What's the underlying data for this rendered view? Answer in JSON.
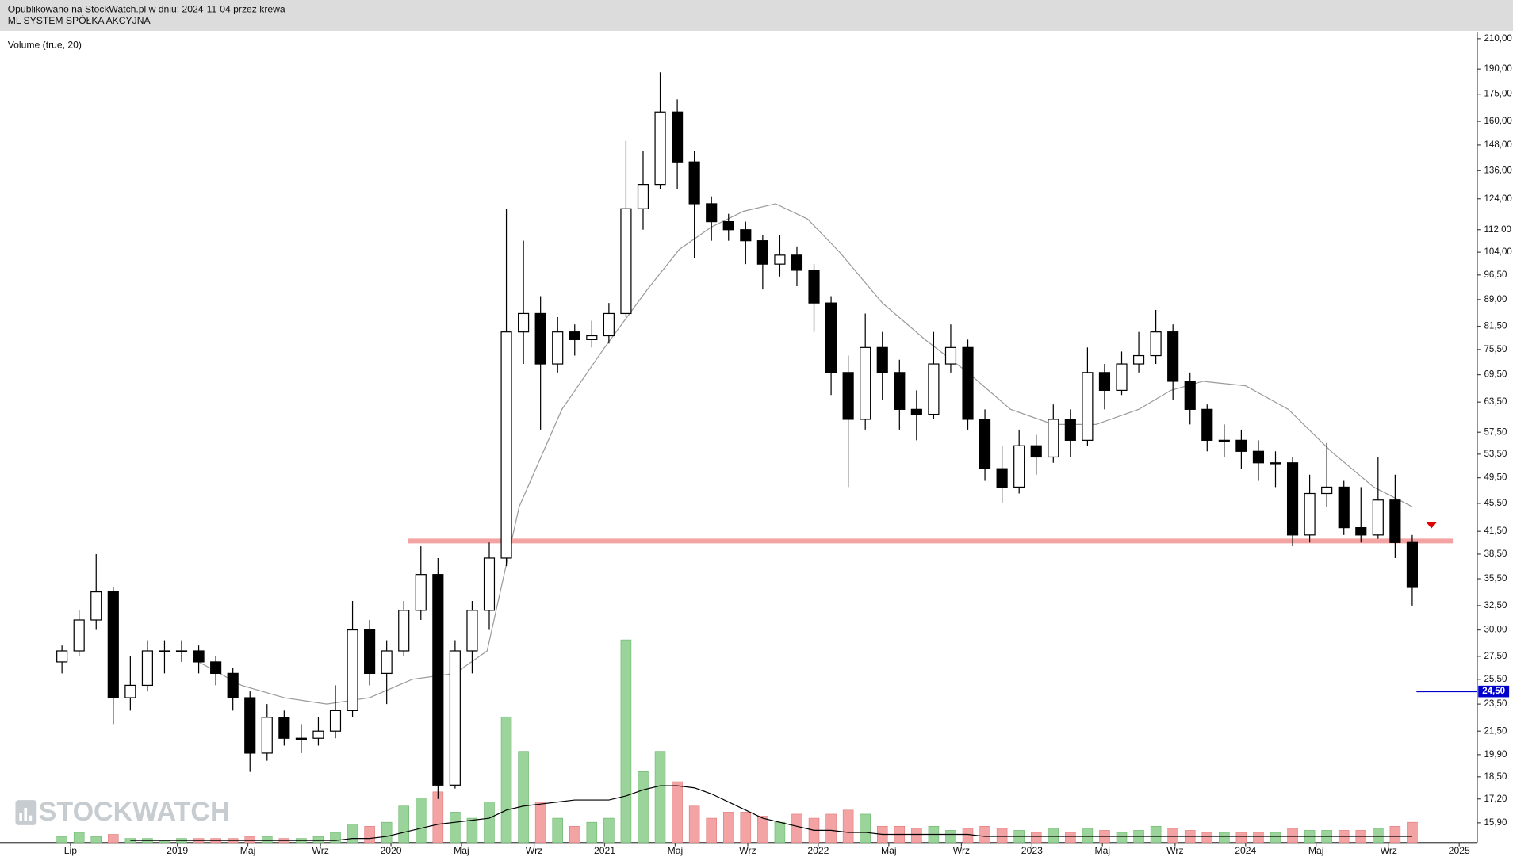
{
  "header": {
    "line1": "Opublikowano na StockWatch.pl w dniu: 2024-11-04 przez krewa",
    "line2": "ML SYSTEM SPÓŁKA AKCYJNA"
  },
  "watermark": "STOCKWATCH",
  "chart_data": {
    "type": "candlestick",
    "indicator_label": "Volume (true, 20)",
    "log_scale": true,
    "up_color": "#ffffff",
    "down_color": "#000000",
    "volume_up_color": "#9bd49b",
    "volume_down_color": "#f3a3a3",
    "volume_ma_color": "#000000",
    "x": [
      2018.46,
      2018.54,
      2018.62,
      2018.7,
      2018.78,
      2018.86,
      2018.94,
      2019.02,
      2019.1,
      2019.18,
      2019.26,
      2019.34,
      2019.42,
      2019.5,
      2019.58,
      2019.66,
      2019.74,
      2019.82,
      2019.9,
      2019.98,
      2020.06,
      2020.14,
      2020.22,
      2020.3,
      2020.38,
      2020.46,
      2020.54,
      2020.62,
      2020.7,
      2020.78,
      2020.86,
      2020.94,
      2021.02,
      2021.1,
      2021.18,
      2021.26,
      2021.34,
      2021.42,
      2021.5,
      2021.58,
      2021.66,
      2021.74,
      2021.82,
      2021.9,
      2021.98,
      2022.06,
      2022.14,
      2022.22,
      2022.3,
      2022.38,
      2022.46,
      2022.54,
      2022.62,
      2022.7,
      2022.78,
      2022.86,
      2022.94,
      2023.02,
      2023.1,
      2023.18,
      2023.26,
      2023.34,
      2023.42,
      2023.5,
      2023.58,
      2023.66,
      2023.74,
      2023.82,
      2023.9,
      2023.98,
      2024.06,
      2024.14,
      2024.22,
      2024.3,
      2024.38,
      2024.46,
      2024.54,
      2024.62,
      2024.7,
      2024.78
    ],
    "open": [
      27,
      28,
      31,
      34,
      24,
      25,
      28,
      28,
      28,
      27,
      26,
      24,
      20,
      22.5,
      21,
      21,
      21.5,
      23,
      30,
      26,
      28,
      32,
      36,
      18,
      28,
      32,
      38,
      80,
      85,
      72,
      80,
      78,
      79,
      85,
      120,
      130,
      165,
      140,
      122,
      115,
      112,
      108,
      100,
      103,
      98,
      88,
      70,
      60,
      76,
      70,
      62,
      61,
      72,
      76,
      60,
      51,
      48,
      55,
      53,
      60,
      56,
      70,
      66,
      72,
      74,
      80,
      68,
      62,
      56,
      56,
      54,
      52,
      52,
      41,
      47,
      48,
      42,
      41,
      46,
      40
    ],
    "high": [
      28.5,
      32,
      38.5,
      34.5,
      27.5,
      29,
      29,
      29,
      28.5,
      27.5,
      26.5,
      24.5,
      23.5,
      23,
      22,
      22.5,
      25,
      33,
      31,
      29,
      33,
      39.5,
      38,
      29,
      33,
      40,
      120,
      108,
      90,
      84,
      82,
      83,
      88,
      150,
      145,
      188,
      172,
      145,
      125,
      118,
      115,
      110,
      110,
      106,
      100,
      90,
      74,
      85,
      80,
      73,
      66,
      80,
      82,
      78,
      62,
      55,
      58,
      57,
      63,
      62,
      76,
      72,
      75,
      80,
      86,
      82,
      70,
      63,
      59,
      58,
      56,
      54,
      53,
      50,
      55.5,
      49,
      48,
      53,
      50,
      41
    ],
    "low": [
      26,
      27.5,
      30,
      22,
      23,
      24.5,
      26,
      27,
      26,
      25,
      23,
      18.8,
      19.5,
      20.5,
      20,
      20.5,
      21,
      22.5,
      25,
      23.5,
      27.5,
      31,
      17.2,
      17.8,
      26,
      30,
      37,
      72,
      58,
      70,
      74,
      76,
      77,
      84,
      112,
      128,
      128,
      102,
      108,
      108,
      100,
      92,
      96,
      93,
      80,
      65,
      48,
      58,
      64,
      58,
      56,
      60,
      70,
      58,
      49,
      45.5,
      47,
      50,
      52,
      53,
      55,
      62,
      65,
      70,
      72,
      64,
      59,
      54,
      53,
      51,
      49,
      48,
      39.5,
      40,
      45,
      41,
      40,
      40.5,
      38,
      32.5
    ],
    "close": [
      28,
      31,
      34,
      24,
      25,
      28,
      28,
      28,
      27,
      26,
      24,
      20,
      22.5,
      21,
      21,
      21.5,
      23,
      30,
      26,
      28,
      32,
      36,
      18,
      28,
      32,
      38,
      80,
      85,
      72,
      80,
      78,
      79,
      85,
      120,
      130,
      165,
      140,
      122,
      115,
      112,
      108,
      100,
      103,
      98,
      88,
      70,
      60,
      76,
      70,
      62,
      61,
      72,
      76,
      60,
      51,
      48,
      55,
      53,
      60,
      56,
      70,
      66,
      72,
      74,
      80,
      68,
      62,
      56,
      56,
      54,
      52,
      52,
      41,
      47,
      48,
      42,
      41,
      46,
      40,
      34.5
    ],
    "volume": [
      3,
      5,
      3,
      4,
      2,
      2,
      1,
      2,
      2,
      2,
      2,
      3,
      3,
      2,
      2,
      3,
      5,
      9,
      8,
      10,
      18,
      22,
      25,
      15,
      12,
      20,
      62,
      45,
      20,
      12,
      8,
      10,
      12,
      100,
      35,
      45,
      30,
      18,
      12,
      15,
      15,
      13,
      10,
      14,
      12,
      14,
      16,
      14,
      8,
      8,
      7,
      8,
      6,
      7,
      8,
      7,
      6,
      5,
      7,
      5,
      7,
      6,
      5,
      6,
      8,
      7,
      6,
      5,
      5,
      5,
      5,
      5,
      7,
      6,
      6,
      6,
      6,
      7,
      8,
      10
    ],
    "volume_ma": [
      null,
      null,
      null,
      null,
      1,
      1,
      1,
      1,
      1,
      1,
      1,
      1,
      1,
      1,
      1,
      1,
      1,
      2,
      2,
      3,
      5,
      7,
      9,
      10,
      11,
      12,
      16,
      18,
      19,
      20,
      21,
      21,
      21,
      23,
      26,
      28,
      28,
      27,
      24,
      20,
      16,
      12,
      10,
      8,
      6,
      6,
      5,
      5,
      4,
      4,
      4,
      4,
      4,
      4,
      3,
      3,
      3,
      3,
      3,
      3,
      3,
      3,
      3,
      3,
      3,
      3,
      3,
      3,
      3,
      3,
      3,
      3,
      3,
      3,
      3,
      3,
      3,
      3,
      3,
      3
    ],
    "ma": {
      "color": "#9a9a9a",
      "x": [
        2019.1,
        2019.3,
        2019.5,
        2019.7,
        2019.9,
        2020.1,
        2020.3,
        2020.45,
        2020.6,
        2020.8,
        2021.0,
        2021.2,
        2021.35,
        2021.5,
        2021.65,
        2021.8,
        2021.95,
        2022.1,
        2022.3,
        2022.5,
        2022.7,
        2022.9,
        2023.1,
        2023.3,
        2023.5,
        2023.65,
        2023.8,
        2024.0,
        2024.2,
        2024.4,
        2024.6,
        2024.78
      ],
      "values": [
        27,
        25,
        24,
        23.5,
        24,
        25.5,
        26,
        28,
        45,
        62,
        76,
        92,
        105,
        113,
        119,
        122,
        116,
        104,
        88,
        78,
        70,
        62,
        59,
        59,
        62,
        66,
        68,
        67,
        62,
        54,
        48,
        45
      ]
    },
    "support_line": {
      "value": 40.2,
      "x": [
        2020.08,
        2024.97
      ],
      "color": "#f4a3a3"
    },
    "price_marker": {
      "value": 24.5,
      "label": "24,50",
      "x": 2024.8,
      "color": "#0000cc"
    },
    "alert_marker": {
      "value": 42.3,
      "x": 2024.87,
      "color": "#e00000"
    },
    "xlim": [
      2018.17,
      2025.08
    ],
    "xticks": [
      {
        "value": 2018.5,
        "label": "Lip"
      },
      {
        "value": 2019,
        "label": "2019"
      },
      {
        "value": 2019.33,
        "label": "Maj"
      },
      {
        "value": 2019.67,
        "label": "Wrz"
      },
      {
        "value": 2020,
        "label": "2020"
      },
      {
        "value": 2020.33,
        "label": "Maj"
      },
      {
        "value": 2020.67,
        "label": "Wrz"
      },
      {
        "value": 2021,
        "label": "2021"
      },
      {
        "value": 2021.33,
        "label": "Maj"
      },
      {
        "value": 2021.67,
        "label": "Wrz"
      },
      {
        "value": 2022,
        "label": "2022"
      },
      {
        "value": 2022.33,
        "label": "Maj"
      },
      {
        "value": 2022.67,
        "label": "Wrz"
      },
      {
        "value": 2023,
        "label": "2023"
      },
      {
        "value": 2023.33,
        "label": "Maj"
      },
      {
        "value": 2023.67,
        "label": "Wrz"
      },
      {
        "value": 2024,
        "label": "2024"
      },
      {
        "value": 2024.33,
        "label": "Maj"
      },
      {
        "value": 2024.67,
        "label": "Wrz"
      },
      {
        "value": 2025,
        "label": "2025"
      }
    ],
    "ylim": [
      14.9,
      214.8
    ],
    "yticks": [
      {
        "value": 210,
        "label": "210,00"
      },
      {
        "value": 190,
        "label": "190,00"
      },
      {
        "value": 175,
        "label": "175,00"
      },
      {
        "value": 160,
        "label": "160,00"
      },
      {
        "value": 148,
        "label": "148,00"
      },
      {
        "value": 136,
        "label": "136,00"
      },
      {
        "value": 124,
        "label": "124,00"
      },
      {
        "value": 112,
        "label": "112,00"
      },
      {
        "value": 104,
        "label": "104,00"
      },
      {
        "value": 96.5,
        "label": "96,50"
      },
      {
        "value": 89,
        "label": "89,00"
      },
      {
        "value": 81.5,
        "label": "81,50"
      },
      {
        "value": 75.5,
        "label": "75,50"
      },
      {
        "value": 69.5,
        "label": "69,50"
      },
      {
        "value": 63.5,
        "label": "63,50"
      },
      {
        "value": 57.5,
        "label": "57,50"
      },
      {
        "value": 53.5,
        "label": "53,50"
      },
      {
        "value": 49.5,
        "label": "49,50"
      },
      {
        "value": 45.5,
        "label": "45,50"
      },
      {
        "value": 41.5,
        "label": "41,50"
      },
      {
        "value": 38.5,
        "label": "38,50"
      },
      {
        "value": 35.5,
        "label": "35,50"
      },
      {
        "value": 32.5,
        "label": "32,50"
      },
      {
        "value": 30,
        "label": "30,00"
      },
      {
        "value": 27.5,
        "label": "27,50"
      },
      {
        "value": 25.5,
        "label": "25,50"
      },
      {
        "value": 23.5,
        "label": "23,50"
      },
      {
        "value": 21.5,
        "label": "21,50"
      },
      {
        "value": 19.9,
        "label": "19,90"
      },
      {
        "value": 18.5,
        "label": "18,50"
      },
      {
        "value": 17.2,
        "label": "17,20"
      },
      {
        "value": 15.9,
        "label": "15,90"
      }
    ]
  }
}
